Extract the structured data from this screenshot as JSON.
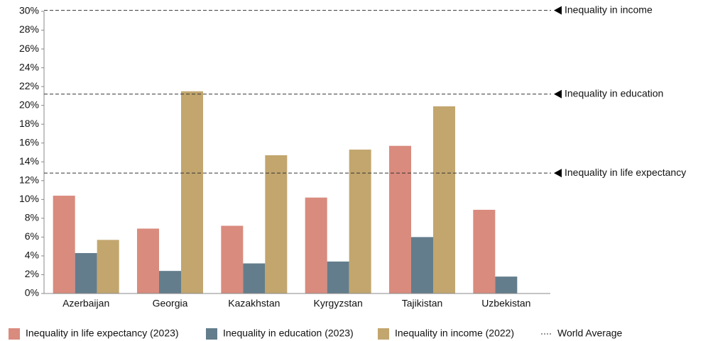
{
  "chart_data": {
    "type": "bar",
    "categories": [
      "Azerbaijan",
      "Georgia",
      "Kazakhstan",
      "Kyrgyzstan",
      "Tajikistan",
      "Uzbekistan"
    ],
    "series": [
      {
        "name": "Inequality in life expectancy (2023)",
        "color": "#d98b7e",
        "values": [
          10.4,
          6.9,
          7.2,
          10.2,
          15.7,
          8.9
        ]
      },
      {
        "name": "Inequality in education (2023)",
        "color": "#637d8c",
        "values": [
          4.3,
          2.4,
          3.2,
          3.4,
          6.0,
          1.8
        ]
      },
      {
        "name": "Inequality in income (2022)",
        "color": "#c2a66e",
        "values": [
          5.7,
          21.5,
          14.7,
          15.3,
          19.9,
          null
        ]
      }
    ],
    "reference_lines": [
      {
        "label": "Inequality in income",
        "value": 30.1
      },
      {
        "label": "Inequality in education",
        "value": 21.2
      },
      {
        "label": "Inequality in life expectancy",
        "value": 12.8
      }
    ],
    "reference_legend": "World Average",
    "ylim": [
      0,
      30
    ],
    "yticks": [
      {
        "value": 0,
        "label": "0%"
      },
      {
        "value": 2,
        "label": "2%"
      },
      {
        "value": 4,
        "label": "4%"
      },
      {
        "value": 6,
        "label": "6%"
      },
      {
        "value": 8,
        "label": "8%"
      },
      {
        "value": 10,
        "label": "10%"
      },
      {
        "value": 12,
        "label": "12%"
      },
      {
        "value": 14,
        "label": "14%"
      },
      {
        "value": 16,
        "label": "16%"
      },
      {
        "value": 18,
        "label": "18%"
      },
      {
        "value": 20,
        "label": "20%"
      },
      {
        "value": 22,
        "label": "22%"
      },
      {
        "value": 24,
        "label": "24%"
      },
      {
        "value": 26,
        "label": "26%"
      },
      {
        "value": 28,
        "label": "28%"
      },
      {
        "value": 30,
        "label": "30%"
      }
    ],
    "legend": "bottom"
  }
}
